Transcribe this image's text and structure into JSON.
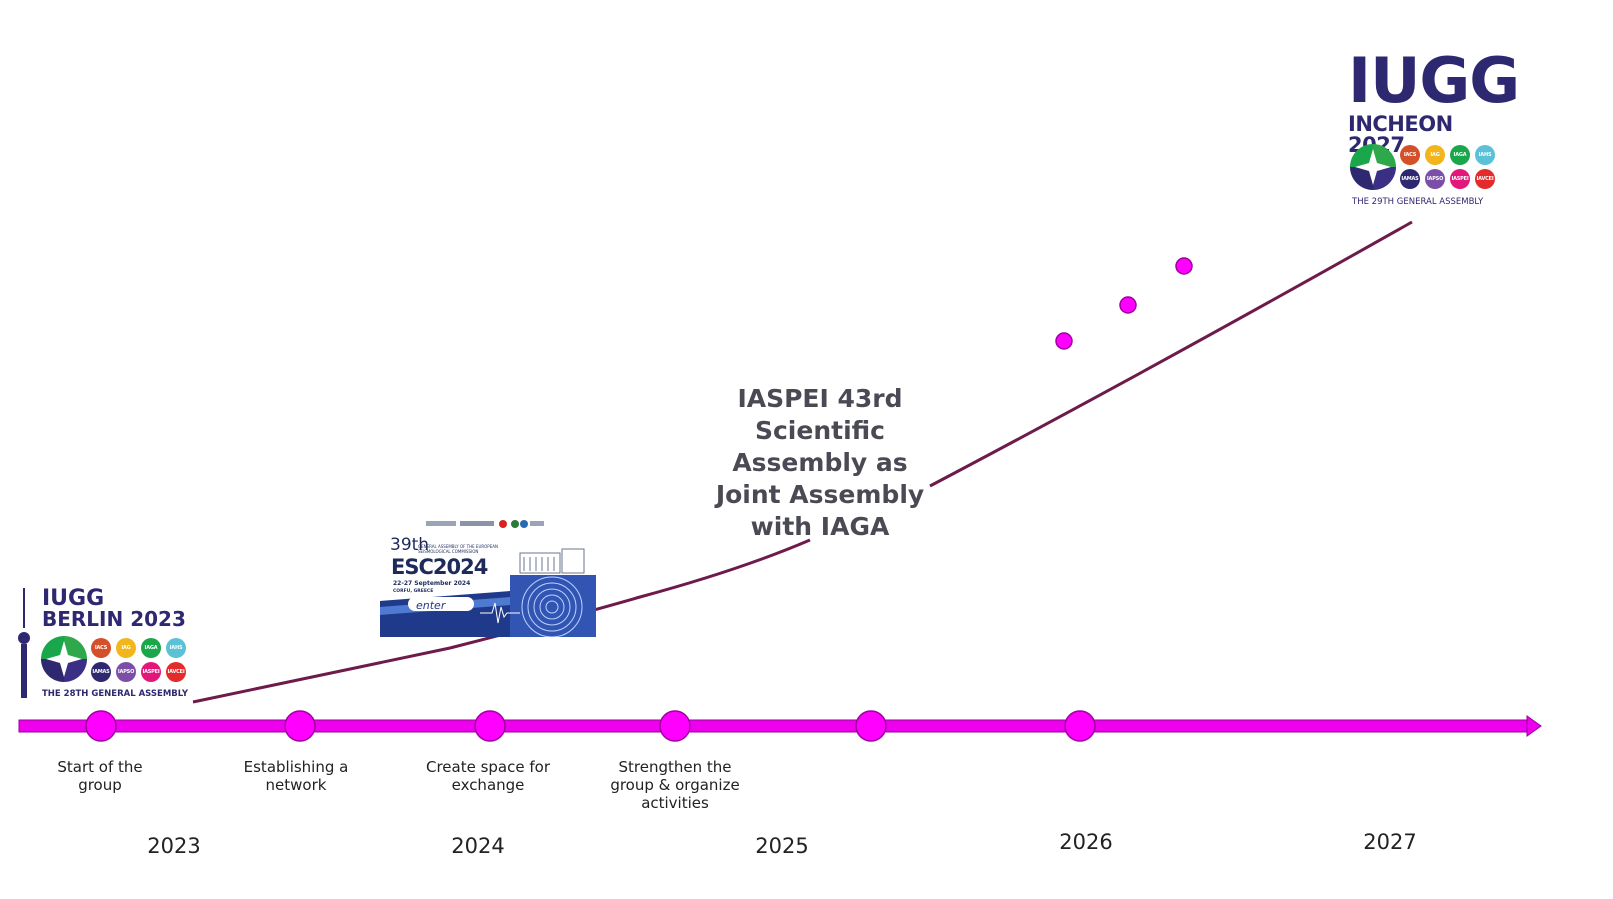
{
  "timeline": {
    "steps": [
      {
        "label_line1": "Start of the",
        "label_line2": "group",
        "label_line3": ""
      },
      {
        "label_line1": "Establishing a",
        "label_line2": "network",
        "label_line3": ""
      },
      {
        "label_line1": "Create space for",
        "label_line2": "exchange",
        "label_line3": ""
      },
      {
        "label_line1": "Strengthen the",
        "label_line2": "group & organize",
        "label_line3": "activities"
      },
      {
        "label_line1": "",
        "label_line2": "",
        "label_line3": ""
      },
      {
        "label_line1": "",
        "label_line2": "",
        "label_line3": ""
      }
    ],
    "years": [
      "2023",
      "2024",
      "2025",
      "2026",
      "2027"
    ],
    "milestone": {
      "line1": "IASPEI 43rd",
      "line2": "Scientific",
      "line3": "Assembly as",
      "line4": "Joint Assembly",
      "line5": "with IAGA"
    }
  },
  "logos": {
    "berlin": {
      "line1": "IUGG",
      "line2": "BERLIN 2023",
      "footer": "THE 28TH GENERAL ASSEMBLY",
      "associations": [
        "IACS",
        "IAG",
        "IAGA",
        "IAHS",
        "IAMAS",
        "IAPSO",
        "IASPEI",
        "IAVCEI"
      ]
    },
    "incheon": {
      "line1": "IUGG",
      "line2": "INCHEON 2027",
      "footer": "THE 29TH GENERAL ASSEMBLY",
      "associations": [
        "IACS",
        "IAG",
        "IAGA",
        "IAHS",
        "IAMAS",
        "IAPSO",
        "IASPEI",
        "IAVCEI"
      ]
    },
    "esc": {
      "number": "39th",
      "subtitle_line1": "GENERAL ASSEMBLY OF THE EUROPEAN",
      "subtitle_line2": "SEISMOLOGICAL COMMISSION",
      "brand": "ESC2024",
      "dates": "22-27 September 2024",
      "place": "CORFU, GREECE",
      "button": "enter"
    }
  },
  "colors": {
    "axis": "#ee00ee",
    "node_fill": "#ff00ff",
    "node_stroke": "#a000a0",
    "trend": "#6e1a4a",
    "iugg_navy": "#2e2870",
    "assoc": [
      "#d4502a",
      "#f2b51c",
      "#1aa64a",
      "#5bc1d6",
      "#2e2870",
      "#7b4fa8",
      "#e3177a",
      "#e32b2b"
    ]
  }
}
